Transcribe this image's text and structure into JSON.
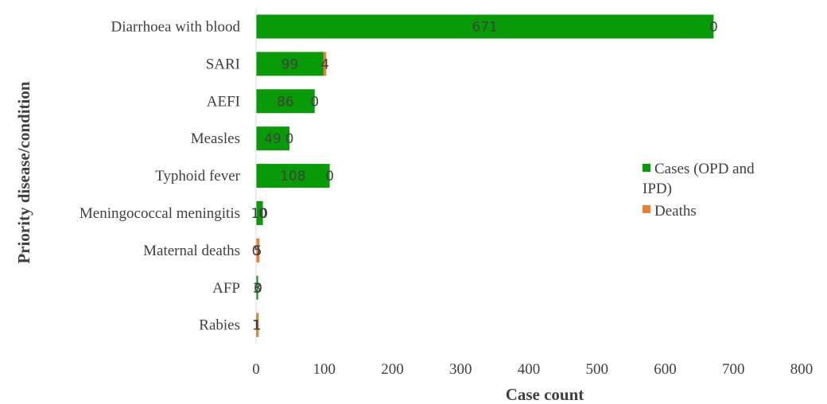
{
  "chart_data": {
    "type": "bar",
    "orientation": "horizontal",
    "stacked": true,
    "categories": [
      "Diarrhoea with blood",
      "SARI",
      "AEFI",
      "Measles",
      "Typhoid fever",
      "Meningococcal meningitis",
      "Maternal deaths",
      "AFP",
      "Rabies"
    ],
    "series": [
      {
        "name": "Cases (OPD and IPD)",
        "color": "#079b07",
        "values": [
          671,
          99,
          86,
          49,
          108,
          10,
          0,
          3,
          1
        ]
      },
      {
        "name": "Deaths",
        "color": "#ed7d31",
        "values": [
          0,
          4,
          0,
          0,
          0,
          0,
          5,
          0,
          1
        ]
      }
    ],
    "xlabel": "Case count",
    "ylabel": "Priority disease/condition",
    "xlim": [
      0,
      800
    ],
    "xticks": [
      0,
      100,
      200,
      300,
      400,
      500,
      600,
      700,
      800
    ],
    "grid": false,
    "legend_position": "right"
  }
}
